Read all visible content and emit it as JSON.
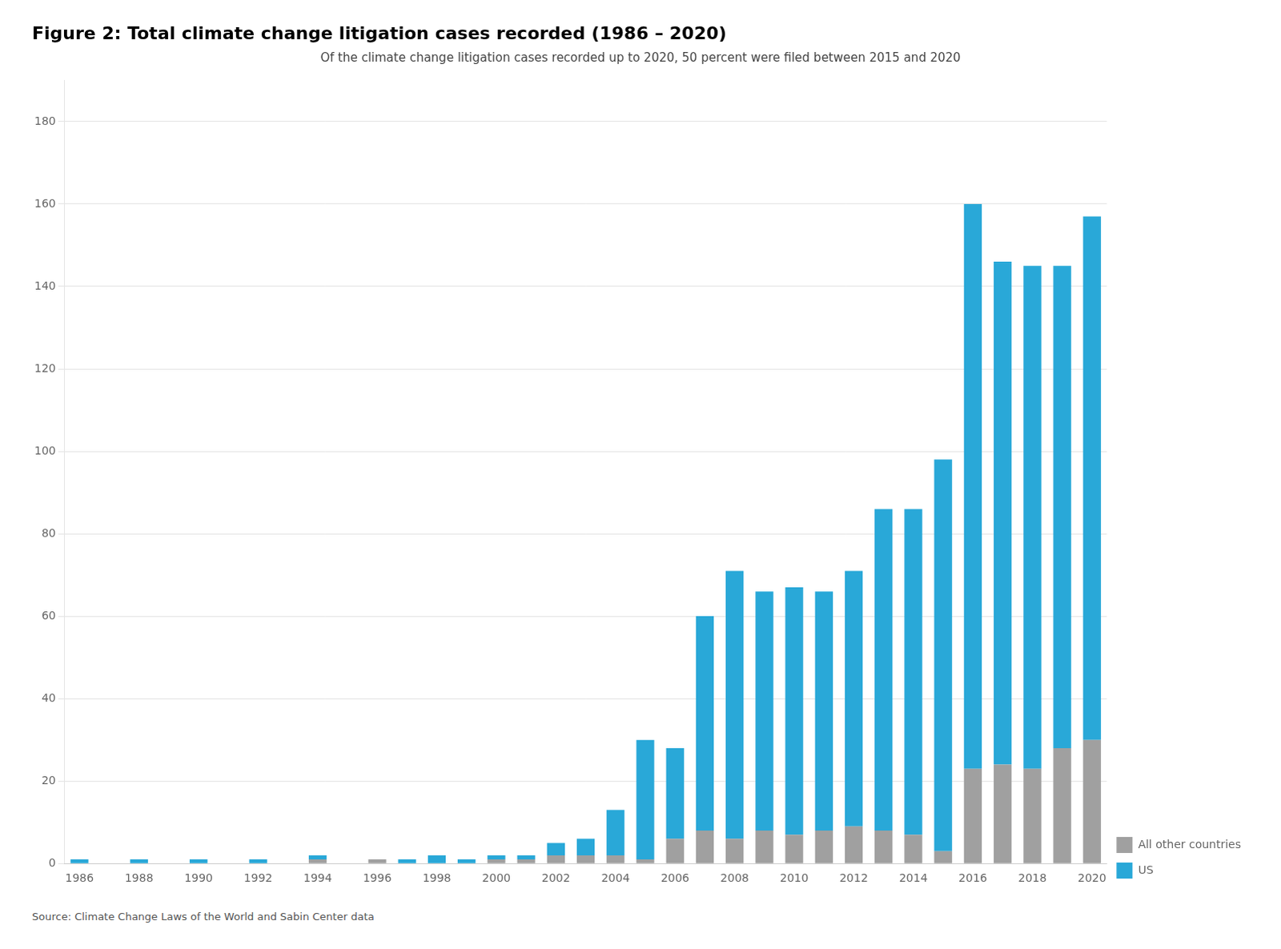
{
  "chart_data": {
    "type": "bar",
    "title": "Figure 2: Total climate change litigation cases recorded (1986 – 2020)",
    "subtitle": "Of the climate change litigation cases recorded up to 2020, 50 percent were filed between 2015 and 2020",
    "annotations": [
      "Source: Climate Change Laws of the World and Sabin Center data"
    ],
    "categories": [
      "1986",
      null,
      "1988",
      null,
      "1990",
      null,
      "1992",
      null,
      "1994",
      null,
      "1996",
      null,
      "1998",
      null,
      "2000",
      null,
      "2002",
      null,
      "2004",
      null,
      "2006",
      null,
      "2008",
      null,
      "2010",
      null,
      "2012",
      null,
      "2014",
      null,
      "2016",
      null,
      "2018",
      null,
      "2020"
    ],
    "series": [
      {
        "name": "All other countries",
        "color": "#a0a0a0",
        "values": [
          0,
          0,
          0,
          0,
          0,
          0,
          0,
          0,
          1,
          0,
          1,
          0,
          0,
          0,
          1,
          1,
          2,
          2,
          2,
          1,
          6,
          8,
          6,
          8,
          7,
          8,
          9,
          8,
          7,
          3,
          23,
          24,
          23,
          28,
          30
        ]
      },
      {
        "name": "US",
        "color": "#29a8d8",
        "values": [
          1,
          0,
          1,
          0,
          1,
          0,
          1,
          0,
          1,
          0,
          0,
          1,
          2,
          1,
          1,
          1,
          3,
          4,
          11,
          29,
          22,
          52,
          65,
          58,
          60,
          58,
          62,
          78,
          79,
          95,
          137,
          122,
          122,
          117,
          127
        ]
      }
    ],
    "stacked": true,
    "ylim": [
      0,
      190
    ],
    "yticks": [
      0,
      20,
      40,
      60,
      80,
      100,
      120,
      140,
      160,
      180
    ],
    "grid": true,
    "legend": "lower right"
  }
}
